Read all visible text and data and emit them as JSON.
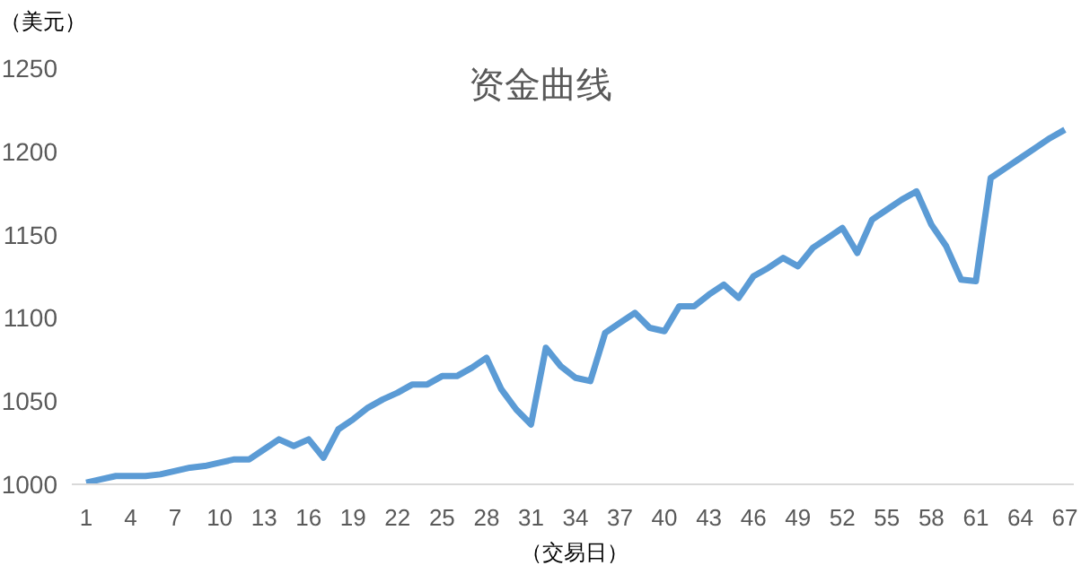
{
  "chart_data": {
    "type": "line",
    "title": "资金曲线",
    "ylabel": "（美元）",
    "xlabel": "（交易日）",
    "categories": [
      "1",
      null,
      null,
      "4",
      null,
      null,
      "7",
      null,
      null,
      "10",
      null,
      null,
      "13",
      null,
      null,
      "16",
      null,
      null,
      "19",
      null,
      null,
      "22",
      null,
      null,
      "25",
      null,
      null,
      "28",
      null,
      null,
      "31",
      null,
      null,
      "34",
      null,
      null,
      "37",
      null,
      null,
      "40",
      null,
      null,
      "43",
      null,
      null,
      "46",
      null,
      null,
      "49",
      null,
      null,
      "52",
      null,
      null,
      "55",
      null,
      null,
      "58",
      null,
      null,
      "61",
      null,
      null,
      "64",
      null,
      null,
      "67"
    ],
    "series": [
      {
        "color": "#5b9bd5",
        "values": [
          1001,
          1003,
          1005,
          1005,
          1005,
          1006,
          1008,
          1010,
          1011,
          1013,
          1015,
          1015,
          1021,
          1027,
          1023,
          1027,
          1016,
          1033,
          1039,
          1046,
          1051,
          1055,
          1060,
          1060,
          1065,
          1065,
          1070,
          1076,
          1057,
          1045,
          1036,
          1082,
          1071,
          1064,
          1062,
          1091,
          1097,
          1103,
          1094,
          1092,
          1107,
          1107,
          1114,
          1120,
          1112,
          1125,
          1130,
          1136,
          1131,
          1142,
          1148,
          1154,
          1139,
          1159,
          1165,
          1171,
          1176,
          1156,
          1143,
          1123,
          1122,
          1184,
          1190,
          1196,
          1202,
          1208,
          1213
        ]
      }
    ],
    "ylim": [
      1000,
      1250
    ],
    "yticks": [
      1000,
      1050,
      1100,
      1150,
      1200,
      1250
    ],
    "grid": false,
    "legend": false,
    "marker": "none",
    "line_style": "solid"
  }
}
